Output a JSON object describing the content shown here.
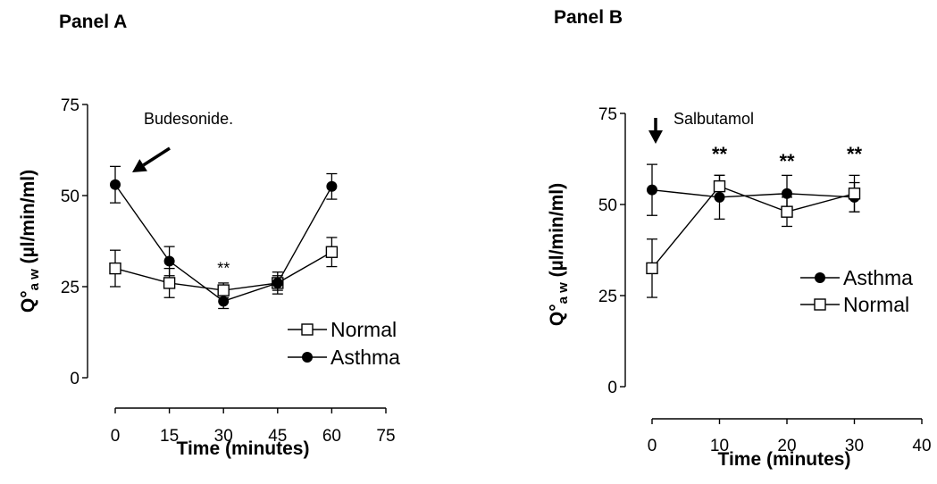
{
  "chart_data": [
    {
      "type": "line",
      "panel_title": "Panel A",
      "xlabel": "Time (minutes)",
      "ylabel": "Q°aw (µl/min/ml)",
      "ylabel_main": "Q°",
      "ylabel_sub": "a w",
      "ylabel_unit": " (µl/min/ml)",
      "xlim": [
        0,
        75
      ],
      "ylim": [
        0,
        75
      ],
      "xticks": [
        0,
        15,
        30,
        45,
        60,
        75
      ],
      "yticks": [
        0,
        25,
        50,
        75
      ],
      "grid": false,
      "legend_position": "lower-right",
      "series": [
        {
          "name": "Normal",
          "marker": "open-square",
          "x": [
            0,
            15,
            30,
            45,
            60
          ],
          "y": [
            30,
            26,
            24,
            26,
            34.5
          ],
          "err": [
            5,
            4,
            2,
            2,
            4
          ]
        },
        {
          "name": "Asthma",
          "marker": "filled-circle",
          "x": [
            0,
            15,
            30,
            45,
            60
          ],
          "y": [
            53,
            32,
            21,
            26,
            52.5
          ],
          "err": [
            5,
            4,
            2,
            3,
            3.5
          ]
        }
      ],
      "annotations": [
        {
          "text": "Budesonide.",
          "kind": "arrow",
          "points_to": [
            0,
            53
          ]
        },
        {
          "text": "**",
          "x": 30,
          "y": 29
        }
      ]
    },
    {
      "type": "line",
      "panel_title": "Panel B",
      "xlabel": "Time (minutes)",
      "ylabel": "Q°aw (µl/min/ml)",
      "ylabel_main": "Q°",
      "ylabel_sub": "a w",
      "ylabel_unit": " (µl/min/ml)",
      "xlim": [
        0,
        40
      ],
      "ylim": [
        0,
        75
      ],
      "xticks": [
        0,
        10,
        20,
        30,
        40
      ],
      "yticks": [
        0,
        25,
        50,
        75
      ],
      "grid": false,
      "legend_position": "right",
      "series": [
        {
          "name": "Asthma",
          "marker": "filled-circle",
          "x": [
            0,
            10,
            20,
            30
          ],
          "y": [
            54,
            52,
            53,
            52
          ],
          "err": [
            7,
            6,
            5,
            4
          ]
        },
        {
          "name": "Normal",
          "marker": "open-square",
          "x": [
            0,
            10,
            20,
            30
          ],
          "y": [
            32.5,
            55,
            48,
            53
          ],
          "err": [
            8,
            3,
            4,
            5
          ]
        }
      ],
      "annotations": [
        {
          "text": "Salbutamol",
          "kind": "arrow",
          "points_to": [
            0,
            66
          ]
        },
        {
          "text": "**",
          "x": 10,
          "y": 62
        },
        {
          "text": "**",
          "x": 20,
          "y": 60
        },
        {
          "text": "**",
          "x": 30,
          "y": 62
        }
      ]
    }
  ]
}
